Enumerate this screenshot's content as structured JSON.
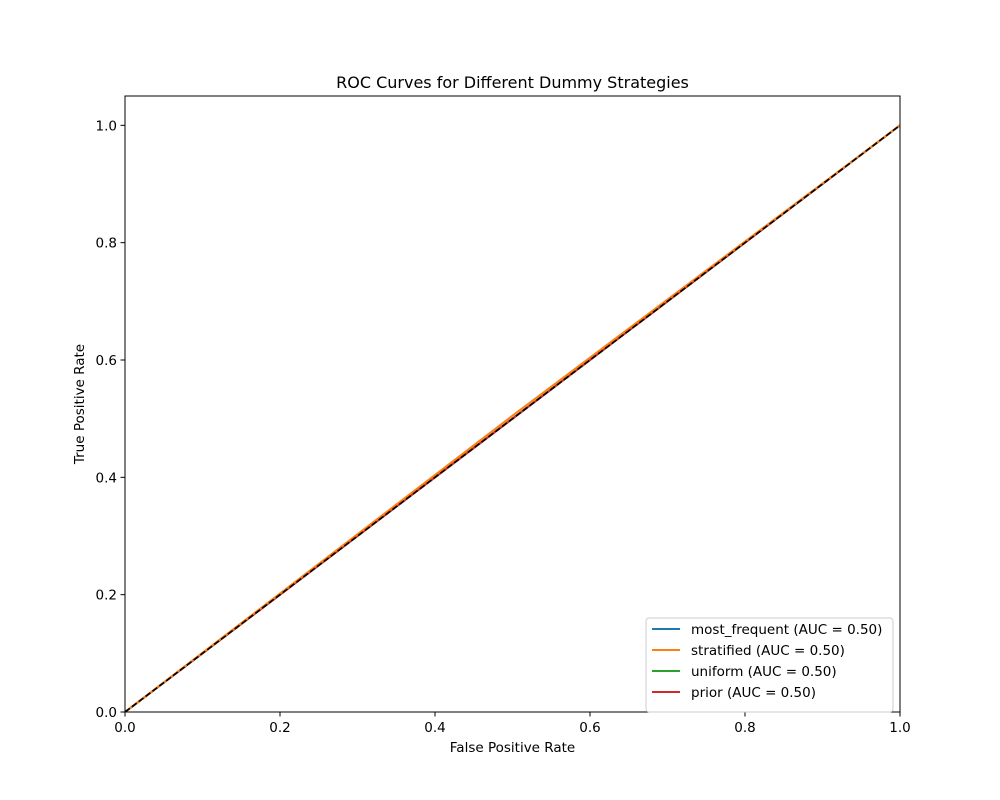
{
  "chart_data": {
    "type": "line",
    "title": "ROC Curves for Different Dummy Strategies",
    "xlabel": "False Positive Rate",
    "ylabel": "True Positive Rate",
    "xlim": [
      0.0,
      1.0
    ],
    "ylim": [
      0.0,
      1.05
    ],
    "xticks": [
      0.0,
      0.2,
      0.4,
      0.6,
      0.8,
      1.0
    ],
    "yticks": [
      0.0,
      0.2,
      0.4,
      0.6,
      0.8,
      1.0
    ],
    "xtick_labels": [
      "0.0",
      "0.2",
      "0.4",
      "0.6",
      "0.8",
      "1.0"
    ],
    "ytick_labels": [
      "0.0",
      "0.2",
      "0.4",
      "0.6",
      "0.8",
      "1.0"
    ],
    "grid": false,
    "legend_position": "lower-right",
    "series": [
      {
        "name": "most_frequent (AUC = 0.50)",
        "color": "#1f77b4",
        "x": [
          0.0,
          1.0
        ],
        "y": [
          0.0,
          1.0
        ]
      },
      {
        "name": "uniform (AUC = 0.50)",
        "color": "#2ca02c",
        "x": [
          0.0,
          1.0
        ],
        "y": [
          0.0,
          1.0
        ]
      },
      {
        "name": "prior (AUC = 0.50)",
        "color": "#d62728",
        "x": [
          0.0,
          1.0
        ],
        "y": [
          0.0,
          1.0
        ]
      },
      {
        "name": "stratified (AUC = 0.50)",
        "color": "#ff7f0e",
        "x": [
          0.0,
          0.5,
          1.0
        ],
        "y": [
          0.0,
          0.505,
          1.0
        ]
      }
    ],
    "legend_order": [
      0,
      3,
      1,
      2
    ],
    "reference_line": {
      "x": [
        0.0,
        1.0
      ],
      "y": [
        0.0,
        1.0
      ],
      "color": "#000000",
      "style": "dashed"
    }
  }
}
